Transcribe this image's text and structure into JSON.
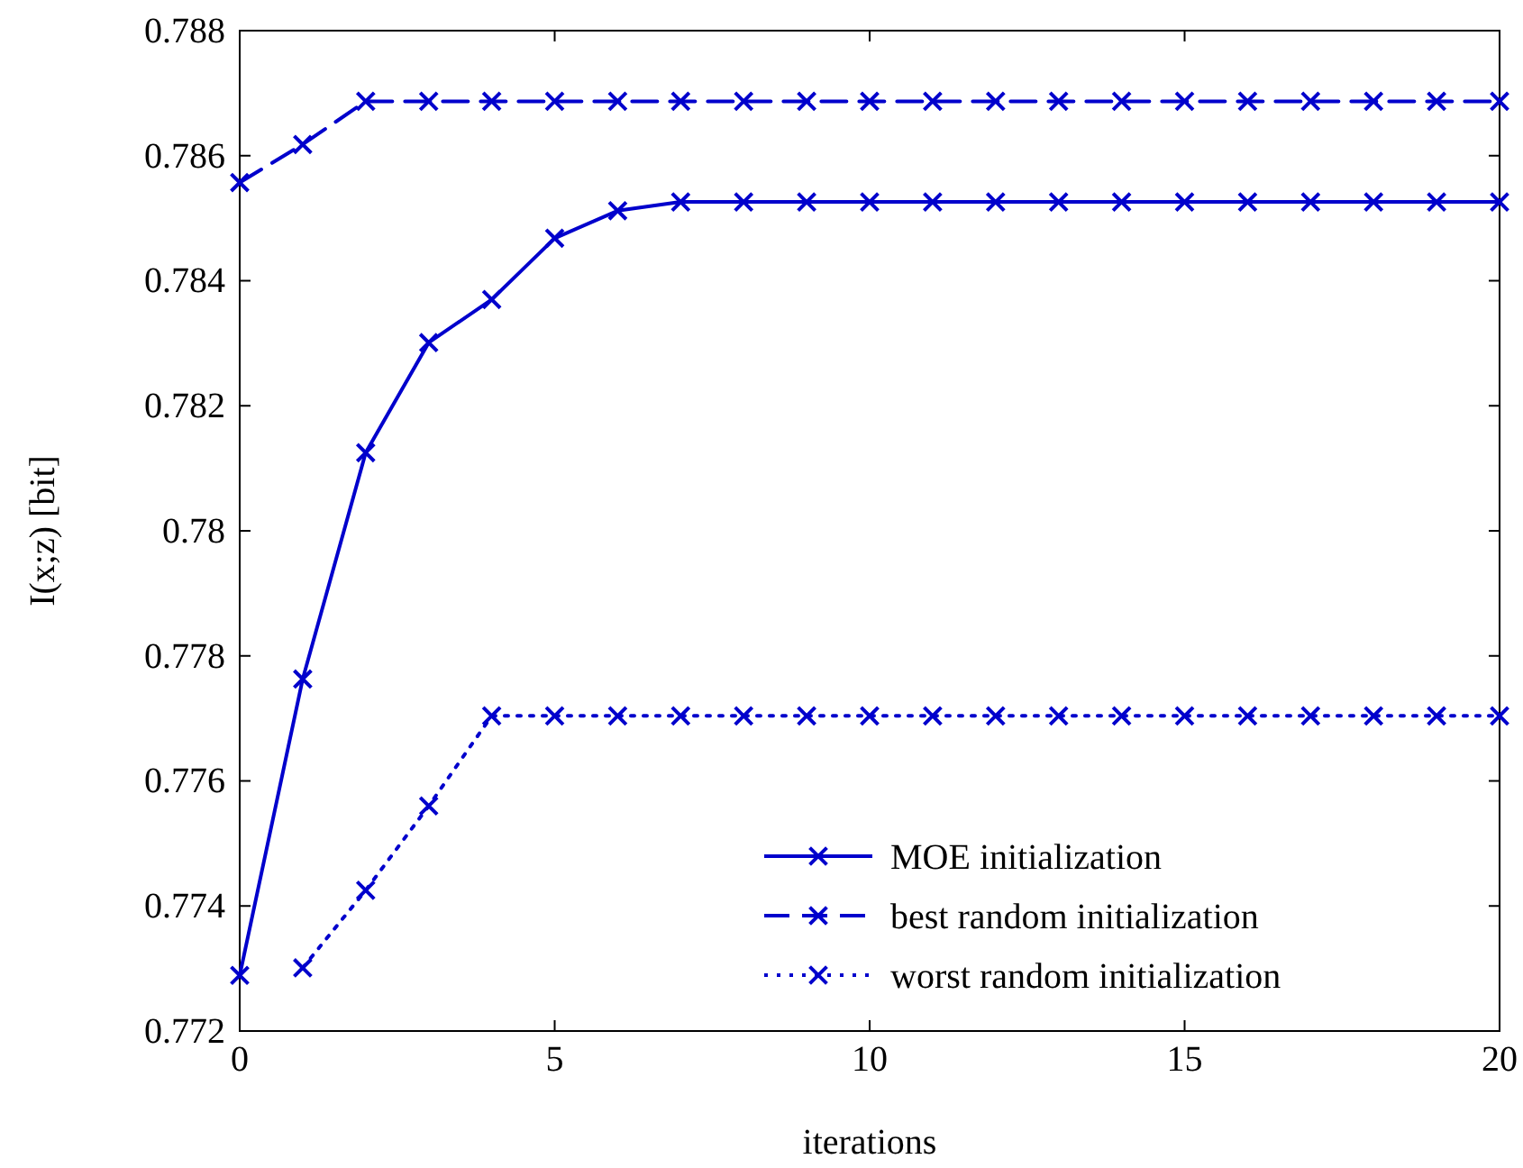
{
  "chart_data": {
    "type": "line",
    "xlabel": "iterations",
    "ylabel": "I(x;z) [bit]",
    "x": [
      0,
      1,
      2,
      3,
      4,
      5,
      6,
      7,
      8,
      9,
      10,
      11,
      12,
      13,
      14,
      15,
      16,
      17,
      18,
      19,
      20
    ],
    "xlim": [
      0,
      20
    ],
    "xticks": [
      0,
      5,
      10,
      15,
      20
    ],
    "ylim": [
      0.772,
      0.788
    ],
    "yticks": [
      0.772,
      0.774,
      0.776,
      0.778,
      0.78,
      0.782,
      0.784,
      0.786,
      0.788
    ],
    "marker": "cross",
    "legend": "bottom right",
    "grid": false,
    "series": [
      {
        "name": "MOE initialization",
        "color": "#0000cc",
        "line_style": "solid",
        "values": [
          0.77289,
          0.77763,
          0.78125,
          0.78301,
          0.7837,
          0.78468,
          0.78512,
          0.78526,
          0.78526,
          0.78526,
          0.78526,
          0.78526,
          0.78526,
          0.78526,
          0.78526,
          0.78526,
          0.78526,
          0.78526,
          0.78526,
          0.78526,
          0.78526
        ]
      },
      {
        "name": "best random initialization",
        "color": "#0000cc",
        "line_style": "dashed",
        "values": [
          0.78557,
          0.78618,
          0.78687,
          0.78687,
          0.78687,
          0.78687,
          0.78687,
          0.78687,
          0.78687,
          0.78687,
          0.78687,
          0.78687,
          0.78687,
          0.78687,
          0.78687,
          0.78687,
          0.78687,
          0.78687,
          0.78687,
          0.78687,
          0.78687
        ]
      },
      {
        "name": "worst random initialization",
        "color": "#0000cc",
        "line_style": "dotted",
        "values": [
          null,
          0.77301,
          0.77425,
          0.7756,
          0.77704,
          0.77704,
          0.77704,
          0.77704,
          0.77704,
          0.77704,
          0.77704,
          0.77704,
          0.77704,
          0.77704,
          0.77704,
          0.77704,
          0.77704,
          0.77704,
          0.77704,
          0.77704,
          0.77704
        ]
      }
    ]
  }
}
